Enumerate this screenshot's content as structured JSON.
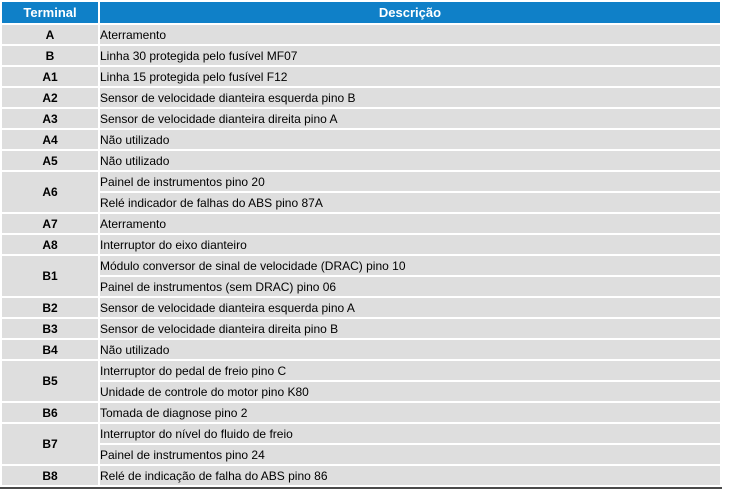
{
  "colors": {
    "header_bg": "#0f80c8",
    "header_text": "#ffffff",
    "row_bg": "#dedede",
    "cell_text": "#000000",
    "bottom_border": "#4a4a4a",
    "gutter": "#ffffff"
  },
  "table": {
    "columns": [
      "Terminal",
      "Descrição"
    ],
    "rows": [
      {
        "terminal": "A",
        "descriptions": [
          "Aterramento"
        ]
      },
      {
        "terminal": "B",
        "descriptions": [
          "Linha 30 protegida pelo fusível MF07"
        ]
      },
      {
        "terminal": "A1",
        "descriptions": [
          "Linha 15 protegida pelo fusível F12"
        ]
      },
      {
        "terminal": "A2",
        "descriptions": [
          "Sensor de velocidade dianteira esquerda pino B"
        ]
      },
      {
        "terminal": "A3",
        "descriptions": [
          "Sensor de velocidade dianteira direita pino A"
        ]
      },
      {
        "terminal": "A4",
        "descriptions": [
          "Não utilizado"
        ]
      },
      {
        "terminal": "A5",
        "descriptions": [
          "Não utilizado"
        ]
      },
      {
        "terminal": "A6",
        "descriptions": [
          "Painel de instrumentos pino 20",
          "Relé indicador de falhas do ABS pino 87A"
        ]
      },
      {
        "terminal": "A7",
        "descriptions": [
          "Aterramento"
        ]
      },
      {
        "terminal": "A8",
        "descriptions": [
          "Interruptor do eixo dianteiro"
        ]
      },
      {
        "terminal": "B1",
        "descriptions": [
          "Módulo conversor de sinal de velocidade (DRAC) pino 10",
          "Painel de instrumentos (sem DRAC) pino 06"
        ]
      },
      {
        "terminal": "B2",
        "descriptions": [
          "Sensor de velocidade dianteira esquerda pino A"
        ]
      },
      {
        "terminal": "B3",
        "descriptions": [
          "Sensor de velocidade dianteira direita pino B"
        ]
      },
      {
        "terminal": "B4",
        "descriptions": [
          "Não utilizado"
        ]
      },
      {
        "terminal": "B5",
        "descriptions": [
          "Interruptor do pedal de freio pino C",
          "Unidade de controle do motor pino K80"
        ]
      },
      {
        "terminal": "B6",
        "descriptions": [
          "Tomada de diagnose pino 2"
        ]
      },
      {
        "terminal": "B7",
        "descriptions": [
          "Interruptor do nível do fluido de freio",
          "Painel de instrumentos pino 24"
        ]
      },
      {
        "terminal": "B8",
        "descriptions": [
          "Relé de indicação de falha do ABS pino 86"
        ]
      }
    ]
  }
}
